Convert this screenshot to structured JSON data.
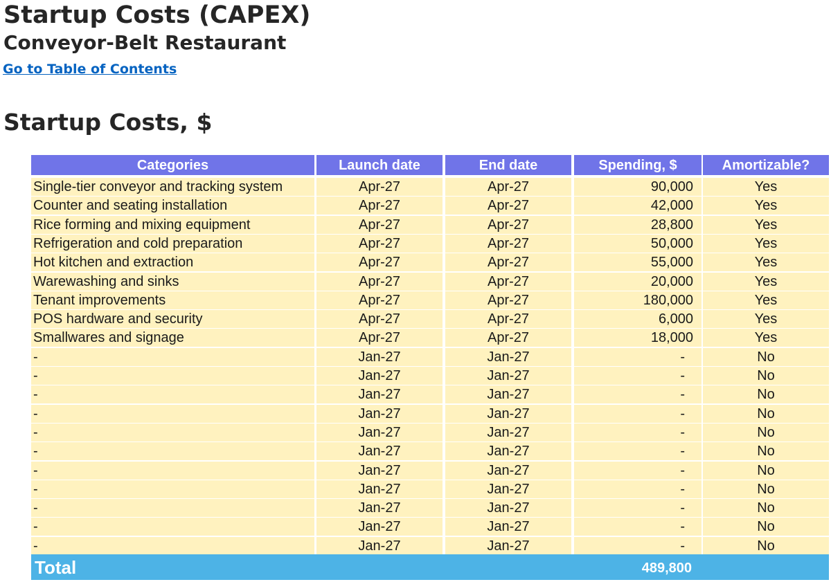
{
  "header": {
    "title": "Startup Costs (CAPEX)",
    "subtitle": "Conveyor-Belt Restaurant",
    "toc_link": "Go to Table of Contents"
  },
  "section_title": "Startup Costs, $",
  "table": {
    "columns": [
      "Categories",
      "Launch date",
      "End date",
      "Spending, $",
      "Amortizable?"
    ],
    "rows": [
      [
        "Single-tier conveyor and tracking system",
        "Apr-27",
        "Apr-27",
        "90,000",
        "Yes"
      ],
      [
        "Counter and seating installation",
        "Apr-27",
        "Apr-27",
        "42,000",
        "Yes"
      ],
      [
        "Rice forming and mixing equipment",
        "Apr-27",
        "Apr-27",
        "28,800",
        "Yes"
      ],
      [
        "Refrigeration and cold preparation",
        "Apr-27",
        "Apr-27",
        "50,000",
        "Yes"
      ],
      [
        "Hot kitchen and extraction",
        "Apr-27",
        "Apr-27",
        "55,000",
        "Yes"
      ],
      [
        "Warewashing and sinks",
        "Apr-27",
        "Apr-27",
        "20,000",
        "Yes"
      ],
      [
        "Tenant improvements",
        "Apr-27",
        "Apr-27",
        "180,000",
        "Yes"
      ],
      [
        "POS hardware and security",
        "Apr-27",
        "Apr-27",
        "6,000",
        "Yes"
      ],
      [
        "Smallwares and signage",
        "Apr-27",
        "Apr-27",
        "18,000",
        "Yes"
      ],
      [
        "-",
        "Jan-27",
        "Jan-27",
        "-",
        "No"
      ],
      [
        "-",
        "Jan-27",
        "Jan-27",
        "-",
        "No"
      ],
      [
        "-",
        "Jan-27",
        "Jan-27",
        "-",
        "No"
      ],
      [
        "-",
        "Jan-27",
        "Jan-27",
        "-",
        "No"
      ],
      [
        "-",
        "Jan-27",
        "Jan-27",
        "-",
        "No"
      ],
      [
        "-",
        "Jan-27",
        "Jan-27",
        "-",
        "No"
      ],
      [
        "-",
        "Jan-27",
        "Jan-27",
        "-",
        "No"
      ],
      [
        "-",
        "Jan-27",
        "Jan-27",
        "-",
        "No"
      ],
      [
        "-",
        "Jan-27",
        "Jan-27",
        "-",
        "No"
      ],
      [
        "-",
        "Jan-27",
        "Jan-27",
        "-",
        "No"
      ],
      [
        "-",
        "Jan-27",
        "Jan-27",
        "-",
        "No"
      ]
    ]
  },
  "total": {
    "label": "Total",
    "value": "489,800"
  },
  "colors": {
    "header_bg": "#7074e8",
    "row_bg": "#fff2bf",
    "total_bg": "#4db3e6",
    "link": "#0563c1"
  }
}
